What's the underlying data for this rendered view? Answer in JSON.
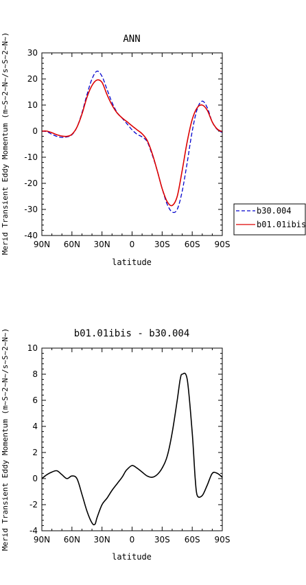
{
  "chart_data": [
    {
      "type": "line",
      "title": "ANN",
      "xlabel": "latitude",
      "ylabel": "Merid Transient Eddy Momentum (m~S~2~N~/s~S~2~N~)",
      "x_tick_labels": [
        "90N",
        "60N",
        "30N",
        "0",
        "30S",
        "60S",
        "90S"
      ],
      "y_ticks": [
        -40,
        -30,
        -20,
        -10,
        0,
        10,
        20,
        30
      ],
      "xlim": [
        90,
        -90
      ],
      "ylim": [
        -40,
        30
      ],
      "grid": false,
      "legend_position": "right, outside bottom",
      "x": [
        90,
        85,
        80,
        75,
        70,
        65,
        60,
        55,
        50,
        45,
        40,
        35,
        30,
        25,
        20,
        15,
        10,
        5,
        0,
        -5,
        -10,
        -15,
        -20,
        -25,
        -30,
        -35,
        -40,
        -45,
        -50,
        -55,
        -60,
        -65,
        -70,
        -75,
        -80,
        -85,
        -90
      ],
      "series": [
        {
          "name": "b30.004",
          "color": "#0000cc",
          "dash": "dashed",
          "values": [
            0,
            -0.2,
            -1.2,
            -2.0,
            -2.4,
            -2.2,
            -1.4,
            1.5,
            7.0,
            14.0,
            20.0,
            23.0,
            21.0,
            16.0,
            11.0,
            7.2,
            5.0,
            2.8,
            0.5,
            -1.2,
            -2.2,
            -4.0,
            -9.0,
            -15.0,
            -22.0,
            -28.0,
            -31.0,
            -30.0,
            -23.0,
            -12.0,
            0.0,
            8.5,
            11.5,
            9.0,
            3.5,
            0.6,
            -0.5
          ]
        },
        {
          "name": "b01.01ibis",
          "color": "#dd0000",
          "dash": "solid",
          "values": [
            0,
            0,
            -0.6,
            -1.4,
            -1.9,
            -2.0,
            -1.2,
            1.5,
            6.5,
            13.0,
            17.5,
            19.6,
            18.7,
            14.0,
            10.0,
            7.0,
            5.1,
            3.6,
            2.0,
            0.5,
            -1.0,
            -3.5,
            -8.5,
            -15.0,
            -22.0,
            -27.0,
            -28.5,
            -25.0,
            -15.0,
            -4.0,
            4.5,
            9.0,
            10.0,
            8.0,
            3.5,
            0.8,
            -0.2
          ]
        }
      ]
    },
    {
      "type": "line",
      "title": "b01.01ibis - b30.004",
      "xlabel": "latitude",
      "ylabel": "Merid Transient Eddy Momentum (m~S~2~N~/s~S~2~N~)",
      "x_tick_labels": [
        "90N",
        "60N",
        "30N",
        "0",
        "30S",
        "60S",
        "90S"
      ],
      "y_ticks": [
        -4,
        -2,
        0,
        2,
        4,
        6,
        8,
        10
      ],
      "xlim": [
        90,
        -90
      ],
      "ylim": [
        -4,
        10
      ],
      "grid": false,
      "x": [
        90,
        85,
        80,
        75,
        70,
        65,
        60,
        55,
        50,
        45,
        40,
        37,
        35,
        30,
        25,
        20,
        15,
        10,
        7,
        5,
        0,
        -5,
        -10,
        -15,
        -20,
        -25,
        -30,
        -35,
        -40,
        -45,
        -48,
        -50,
        -55,
        -60,
        -63,
        -65,
        -70,
        -75,
        -80,
        -85,
        -90
      ],
      "series": [
        {
          "color": "#000000",
          "dash": "solid",
          "values": [
            0,
            0.3,
            0.5,
            0.6,
            0.3,
            0.0,
            0.2,
            0.0,
            -1.2,
            -2.5,
            -3.4,
            -3.5,
            -3.0,
            -2.0,
            -1.5,
            -0.9,
            -0.4,
            0.1,
            0.5,
            0.7,
            1.0,
            0.8,
            0.5,
            0.2,
            0.1,
            0.3,
            0.8,
            1.7,
            3.5,
            6.0,
            7.6,
            8.0,
            7.6,
            3.5,
            0.0,
            -1.3,
            -1.3,
            -0.5,
            0.4,
            0.4,
            0.1
          ]
        }
      ]
    }
  ]
}
